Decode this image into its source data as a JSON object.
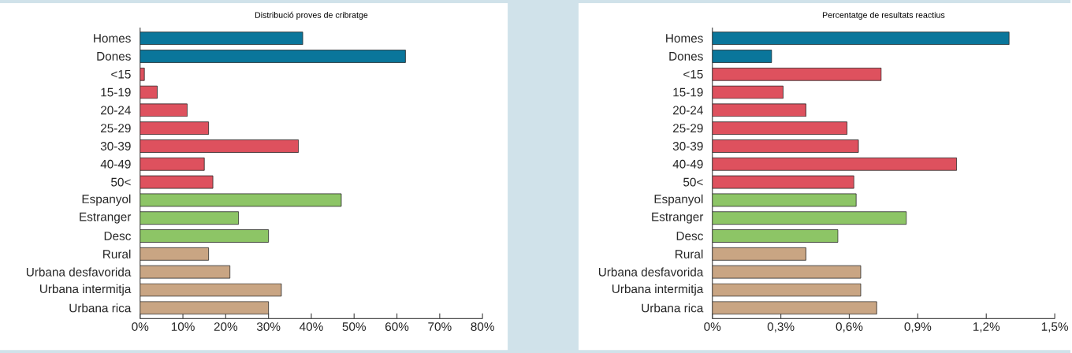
{
  "chart_data": [
    {
      "type": "bar",
      "orientation": "horizontal",
      "title": "Distribució proves de cribratge",
      "categories": [
        "Homes",
        "Dones",
        "<15",
        "15-19",
        "20-24",
        "25-29",
        "30-39",
        "40-49",
        "50<",
        "Espanyol",
        "Estranger",
        "Desc",
        "Rural",
        "Urbana desfavorida",
        "Urbana intermitja",
        "Urbana rica"
      ],
      "values": [
        38,
        62,
        1,
        4,
        11,
        16,
        37,
        15,
        17,
        47,
        23,
        30,
        16,
        21,
        33,
        30
      ],
      "colors": [
        "#0a769b",
        "#0a769b",
        "#de515e",
        "#de515e",
        "#de515e",
        "#de515e",
        "#de515e",
        "#de515e",
        "#de515e",
        "#8dc566",
        "#8dc566",
        "#8dc566",
        "#c9a583",
        "#c9a583",
        "#c9a583",
        "#c9a583"
      ],
      "xlim": [
        0,
        80
      ],
      "xticks": [
        {
          "value": 0,
          "label": "0%"
        },
        {
          "value": 10,
          "label": "10%"
        },
        {
          "value": 20,
          "label": "20%"
        },
        {
          "value": 30,
          "label": "30%"
        },
        {
          "value": 40,
          "label": "40%"
        },
        {
          "value": 50,
          "label": "50%"
        },
        {
          "value": 60,
          "label": "60%"
        },
        {
          "value": 70,
          "label": "70%"
        },
        {
          "value": 80,
          "label": "80%"
        }
      ]
    },
    {
      "type": "bar",
      "orientation": "horizontal",
      "title": "Percentatge de resultats reactius",
      "categories": [
        "Homes",
        "Dones",
        "<15",
        "15-19",
        "20-24",
        "25-29",
        "30-39",
        "40-49",
        "50<",
        "Espanyol",
        "Estranger",
        "Desc",
        "Rural",
        "Urbana desfavorida",
        "Urbana intermitja",
        "Urbana rica"
      ],
      "values": [
        1.3,
        0.26,
        0.74,
        0.31,
        0.41,
        0.59,
        0.64,
        1.07,
        0.62,
        0.63,
        0.85,
        0.55,
        0.41,
        0.65,
        0.65,
        0.72
      ],
      "colors": [
        "#0a769b",
        "#0a769b",
        "#de515e",
        "#de515e",
        "#de515e",
        "#de515e",
        "#de515e",
        "#de515e",
        "#de515e",
        "#8dc566",
        "#8dc566",
        "#8dc566",
        "#c9a583",
        "#c9a583",
        "#c9a583",
        "#c9a583"
      ],
      "xlim": [
        0,
        1.5
      ],
      "xticks": [
        {
          "value": 0,
          "label": "0%"
        },
        {
          "value": 0.3,
          "label": "0,3%"
        },
        {
          "value": 0.6,
          "label": "0,6%"
        },
        {
          "value": 0.9,
          "label": "0,9%"
        },
        {
          "value": 1.2,
          "label": "1,2%"
        },
        {
          "value": 1.5,
          "label": "1,5%"
        }
      ]
    }
  ]
}
